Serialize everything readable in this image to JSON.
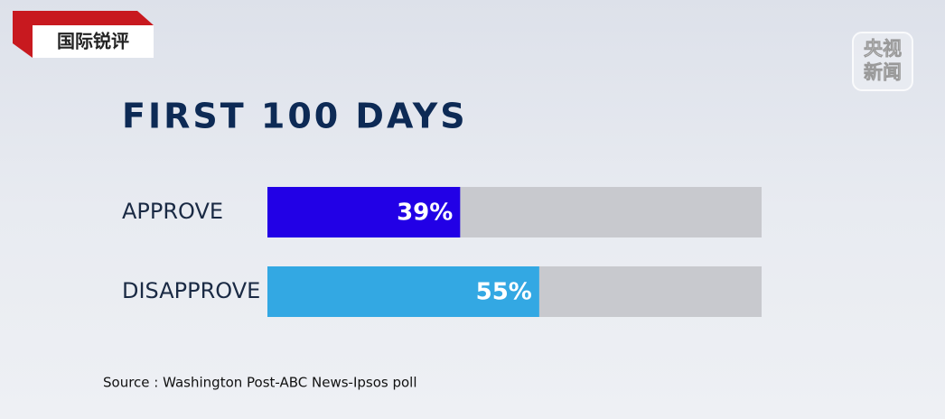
{
  "logo": {
    "text": "国际锐评"
  },
  "watermark": {
    "lines": [
      "央视",
      "新闻"
    ]
  },
  "chart_data": {
    "type": "bar",
    "orientation": "horizontal",
    "title": "FIRST 100 DAYS",
    "categories": [
      "APPROVE",
      "DISAPPROVE"
    ],
    "values": [
      39,
      55
    ],
    "value_labels": [
      "39%",
      "55%"
    ],
    "colors": [
      "#2200e6",
      "#33a8e3"
    ],
    "track_color": "#c8c9ce",
    "xlim": [
      0,
      100
    ],
    "source": "Source : Washington Post-ABC News-Ipsos poll"
  }
}
